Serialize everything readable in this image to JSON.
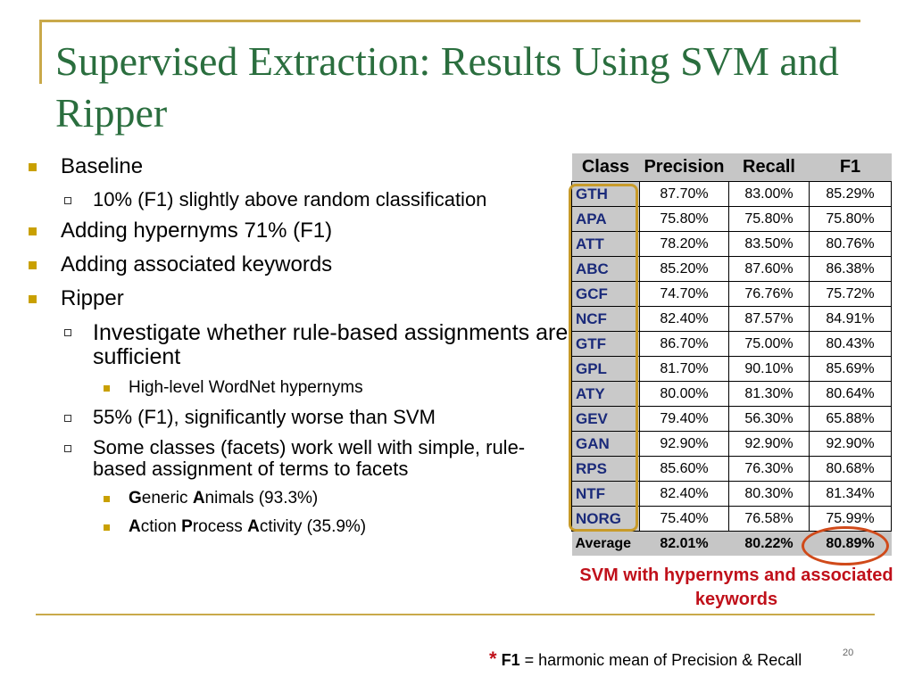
{
  "slide": {
    "title": "Supervised Extraction: Results Using SVM and Ripper",
    "page_number": "20"
  },
  "bullets": [
    {
      "level": 1,
      "segments": [
        {
          "t": "Baseline"
        }
      ]
    },
    {
      "level": 2,
      "segments": [
        {
          "t": "10% (F1) slightly above random classification"
        }
      ]
    },
    {
      "level": 1,
      "segments": [
        {
          "t": "Adding hypernyms 71% (F1)"
        }
      ]
    },
    {
      "level": 1,
      "segments": [
        {
          "t": "Adding associated keywords"
        }
      ]
    },
    {
      "level": 1,
      "segments": [
        {
          "t": "Ripper"
        }
      ]
    },
    {
      "level": 2,
      "big": true,
      "segments": [
        {
          "t": "Investigate whether rule-based assignments are sufficient"
        }
      ]
    },
    {
      "level": 3,
      "segments": [
        {
          "t": "High-level WordNet hypernyms"
        }
      ]
    },
    {
      "level": 2,
      "segments": [
        {
          "t": "55% (F1), significantly worse than SVM"
        }
      ]
    },
    {
      "level": 2,
      "segments": [
        {
          "t": "Some classes (facets) work well with simple, rule-based assignment of terms to facets"
        }
      ]
    },
    {
      "level": 3,
      "segments": [
        {
          "t": "G",
          "b": true
        },
        {
          "t": "eneric "
        },
        {
          "t": "A",
          "b": true
        },
        {
          "t": "nimals (93.3%)"
        }
      ]
    },
    {
      "level": 3,
      "segments": [
        {
          "t": "A",
          "b": true
        },
        {
          "t": "ction "
        },
        {
          "t": "P",
          "b": true
        },
        {
          "t": "rocess "
        },
        {
          "t": "A",
          "b": true
        },
        {
          "t": "ctivity (35.9%)"
        }
      ]
    }
  ],
  "table": {
    "headers": [
      "Class",
      "Precision",
      "Recall",
      "F1"
    ],
    "rows": [
      [
        "GTH",
        "87.70%",
        "83.00%",
        "85.29%"
      ],
      [
        "APA",
        "75.80%",
        "75.80%",
        "75.80%"
      ],
      [
        "ATT",
        "78.20%",
        "83.50%",
        "80.76%"
      ],
      [
        "ABC",
        "85.20%",
        "87.60%",
        "86.38%"
      ],
      [
        "GCF",
        "74.70%",
        "76.76%",
        "75.72%"
      ],
      [
        "NCF",
        "82.40%",
        "87.57%",
        "84.91%"
      ],
      [
        "GTF",
        "86.70%",
        "75.00%",
        "80.43%"
      ],
      [
        "GPL",
        "81.70%",
        "90.10%",
        "85.69%"
      ],
      [
        "ATY",
        "80.00%",
        "81.30%",
        "80.64%"
      ],
      [
        "GEV",
        "79.40%",
        "56.30%",
        "65.88%"
      ],
      [
        "GAN",
        "92.90%",
        "92.90%",
        "92.90%"
      ],
      [
        "RPS",
        "85.60%",
        "76.30%",
        "80.68%"
      ],
      [
        "NTF",
        "82.40%",
        "80.30%",
        "81.34%"
      ],
      [
        "NORG",
        "75.40%",
        "76.58%",
        "75.99%"
      ]
    ],
    "average": [
      "Average",
      "82.01%",
      "80.22%",
      "80.89%"
    ]
  },
  "caption": "SVM with hypernyms and associated keywords",
  "footnote": {
    "star": "*",
    "term": "F1",
    "text": " = harmonic mean of Precision & Recall"
  },
  "colors": {
    "title": "#2a6e3e",
    "accent_gold": "#c9a94a",
    "caption_red": "#c0101a",
    "circle_orange": "#d04a1a"
  }
}
